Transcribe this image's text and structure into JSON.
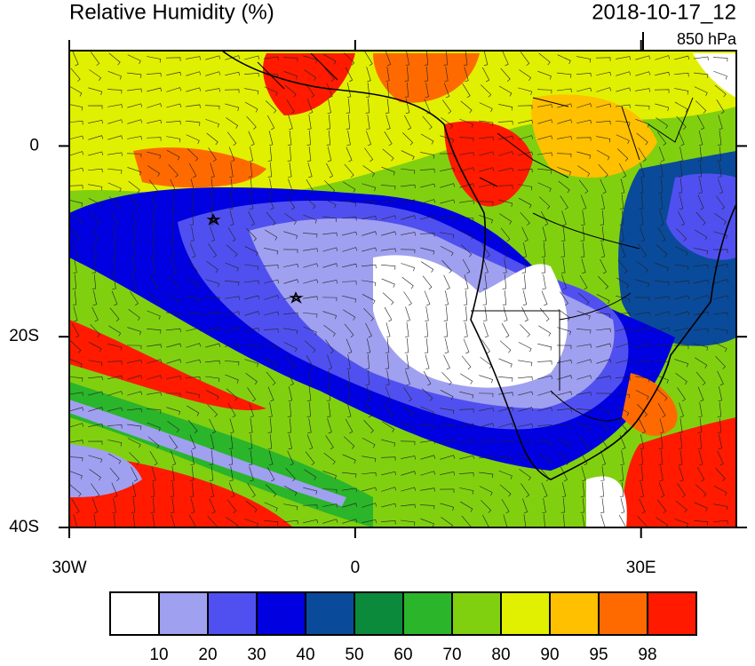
{
  "title": "Relative Humidity (%)",
  "valid_time": "2018-10-17_12",
  "level": "850 hPa",
  "map": {
    "lonlim": [
      -30,
      40
    ],
    "latlim": [
      -40,
      10
    ],
    "lonticks": [
      {
        "value": -30,
        "label": "30W"
      },
      0,
      {
        "value": 30,
        "label": "30E"
      }
    ],
    "latticks": [
      0,
      {
        "value": -20,
        "label": "20S"
      },
      {
        "value": -40,
        "label": "40S"
      }
    ]
  },
  "colorbar": {
    "colors": [
      "#ffffff",
      "#a0a0f0",
      "#5050f0",
      "#0000e0",
      "#0a4a9a",
      "#0a8a3a",
      "#2ab52a",
      "#80d010",
      "#e0f000",
      "#ffc000",
      "#ff6a00",
      "#ff1a00"
    ],
    "levels": [
      10,
      20,
      30,
      40,
      50,
      60,
      70,
      80,
      90,
      95,
      98
    ]
  }
}
